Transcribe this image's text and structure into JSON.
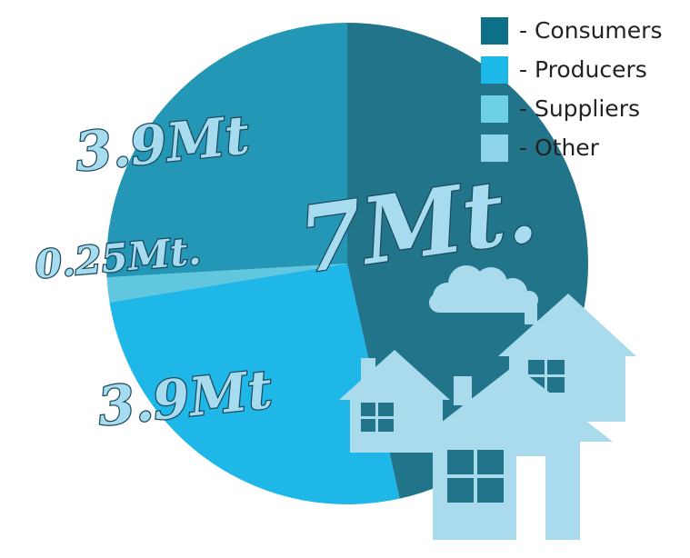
{
  "chart_data": {
    "type": "pie",
    "series": [
      {
        "name": "Consumers",
        "value": 7,
        "label": "7Mt.",
        "color": "#217489"
      },
      {
        "name": "Producers",
        "value": 3.9,
        "label": "3.9Mt",
        "color": "#1fb6e8"
      },
      {
        "name": "Suppliers",
        "value": 0.25,
        "label": "0.25Mt.",
        "color": "#61c7df"
      },
      {
        "name": "Other",
        "value": 3.9,
        "label": "3.9Mt",
        "color": "#2497b6"
      }
    ],
    "legend_placement": "top-right"
  },
  "legend": [
    {
      "label": "- Consumers",
      "color": "#0d6f88"
    },
    {
      "label": "- Producers",
      "color": "#1cb8e8"
    },
    {
      "label": "- Suppliers",
      "color": "#6ecfe6"
    },
    {
      "label": "- Other",
      "color": "#8fd5ea"
    }
  ],
  "decoration": {
    "house_color": "#a9dbec",
    "cloud_color": "#a9dbec",
    "icons": [
      "house-icon",
      "cloud-icon"
    ]
  }
}
